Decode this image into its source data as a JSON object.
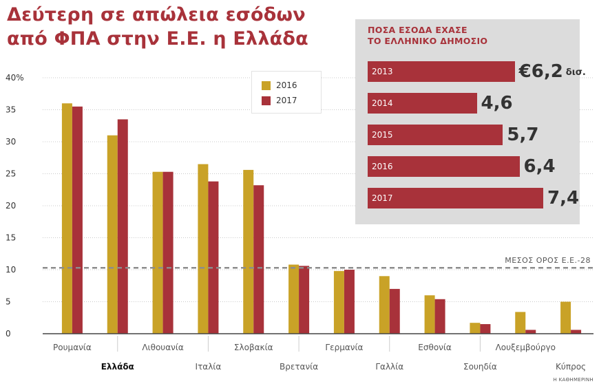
{
  "title_lines": [
    "Δεύτερη σε απώλεια εσόδων",
    "από ΦΠΑ στην Ε.Ε. η Ελλάδα"
  ],
  "colors": {
    "series_2016": "#c9a227",
    "series_2017": "#a8323a",
    "accent": "#a8323a",
    "inset_bg": "#dcdcdc"
  },
  "chart_data": {
    "type": "bar",
    "ylabel": "",
    "ylim": [
      0,
      40
    ],
    "yticks": [
      {
        "value": 0,
        "label": "0"
      },
      {
        "value": 5,
        "label": "5"
      },
      {
        "value": 10,
        "label": "10"
      },
      {
        "value": 15,
        "label": "15"
      },
      {
        "value": 20,
        "label": "20"
      },
      {
        "value": 25,
        "label": "25"
      },
      {
        "value": 30,
        "label": "30"
      },
      {
        "value": 35,
        "label": "35"
      },
      {
        "value": 40,
        "label": "40%"
      }
    ],
    "grid": true,
    "categories": [
      "Ρουμανία",
      "Ελλάδα",
      "Λιθουανία",
      "Ιταλία",
      "Σλοβακία",
      "Βρετανία",
      "Γερμανία",
      "Γαλλία",
      "Εσθονία",
      "Σουηδία",
      "Λουξεμβούργο",
      "Κύπρος"
    ],
    "series": [
      {
        "name": "2016",
        "values": [
          36.0,
          31.0,
          25.3,
          26.5,
          25.6,
          10.8,
          9.8,
          9.0,
          6.0,
          1.7,
          3.4,
          5.0
        ]
      },
      {
        "name": "2017",
        "values": [
          35.5,
          33.5,
          25.3,
          23.8,
          23.2,
          10.6,
          10.0,
          7.0,
          5.4,
          1.5,
          0.6,
          0.6
        ]
      }
    ],
    "reference_line": {
      "value": 10.3,
      "label": "ΜΕΣΟΣ ΟΡΟΣ Ε.Ε.-28"
    },
    "legend": "top-center"
  },
  "inset": {
    "title_lines": [
      "ΠΟΣΑ ΕΣΟΔΑ ΕΧΑΣΕ",
      "ΤΟ ΕΛΛΗΝΙΚΟ ΔΗΜΟΣΙΟ"
    ],
    "unit": "δισ.",
    "max": 7.4,
    "rows": [
      {
        "year": "2013",
        "value": 6.2,
        "label": "€6,2"
      },
      {
        "year": "2014",
        "value": 4.6,
        "label": "4,6"
      },
      {
        "year": "2015",
        "value": 5.7,
        "label": "5,7"
      },
      {
        "year": "2016",
        "value": 6.4,
        "label": "6,4"
      },
      {
        "year": "2017",
        "value": 7.4,
        "label": "7,4"
      }
    ]
  },
  "credit": "Η ΚΑΘΗΜΕΡΙΝΗ"
}
